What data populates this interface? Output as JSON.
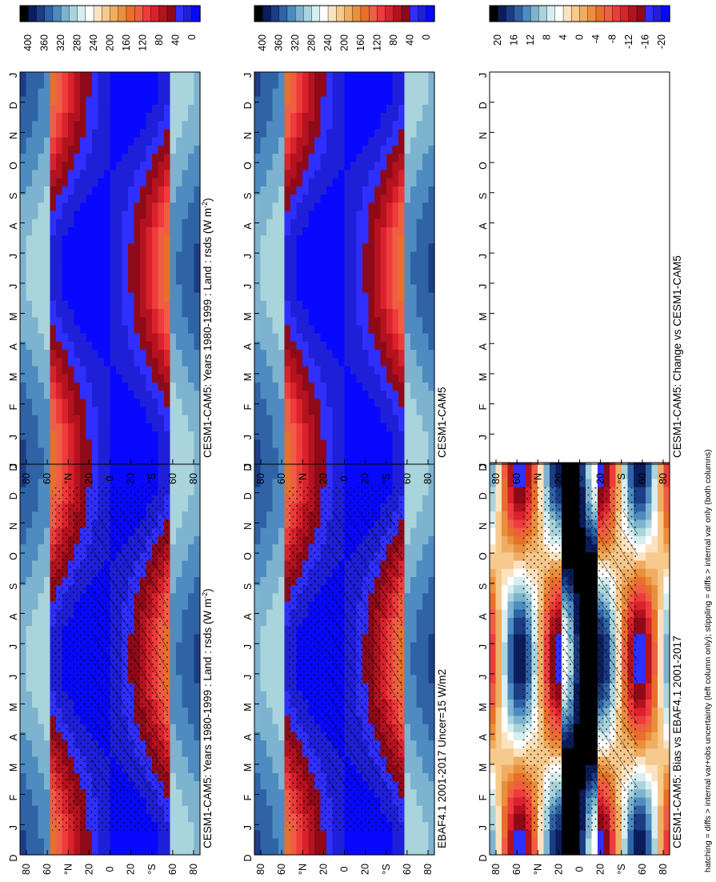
{
  "footer_note": "hatching = diffs > internal var+obs uncertainty (left column only); stippling = diffs > internal var only (both columns)",
  "month_labels": [
    "D",
    "J",
    "F",
    "M",
    "A",
    "M",
    "J",
    "J",
    "A",
    "S",
    "O",
    "N",
    "D",
    "J"
  ],
  "lat_labels": [
    "80",
    "60",
    "°N",
    "20",
    "0",
    "20",
    "°S",
    "60",
    "80"
  ],
  "colorbars": {
    "absolute": {
      "labels": [
        "0",
        "40",
        "80",
        "120",
        "160",
        "200",
        "240",
        "280",
        "320",
        "360",
        "400"
      ],
      "colors": [
        "#000000",
        "#0b1d5c",
        "#1c3d84",
        "#2f63a6",
        "#4d8bc0",
        "#7db3cf",
        "#a9d4dc",
        "#d7eef0",
        "#ffffff",
        "#fbe3c2",
        "#f6c98c",
        "#f0ad62",
        "#ea8f3c",
        "#e8702a",
        "#ef5e42",
        "#ee3b3b",
        "#d9222d",
        "#b4121f",
        "#8f0a19",
        "#2f2fff",
        "#1f1fd8",
        "#0808ff"
      ]
    },
    "difference": {
      "labels": [
        "-20",
        "-16",
        "-12",
        "-8",
        "-4",
        "0",
        "4",
        "8",
        "12",
        "16",
        "20"
      ],
      "colors": [
        "#000000",
        "#0b1d5c",
        "#1c3d84",
        "#2f63a6",
        "#4d8bc0",
        "#7db3cf",
        "#a9d4dc",
        "#d7eef0",
        "#ffffff",
        "#fbe3c2",
        "#f6c98c",
        "#f0ad62",
        "#ea8f3c",
        "#e8702a",
        "#ef5e42",
        "#ee3b3b",
        "#d9222d",
        "#b4121f",
        "#8f0a19",
        "#2f2fff",
        "#1f1fd8",
        "#0808ff"
      ]
    }
  },
  "chart_data": [
    {
      "type": "heatmap",
      "title": "CESM1-CAM5: Years 1980-1999 : Land : rsds (W m",
      "title_superscript": "-2",
      "title_suffix": ")",
      "x": "month (Dec to Jan)",
      "y": "latitude (90S to 90N)",
      "clim": [
        0,
        400
      ],
      "overlays": [
        "hatching",
        "stippling"
      ],
      "position": "row-1-left"
    },
    {
      "type": "heatmap",
      "title": "CESM1-CAM5: Years 1980-1999 : Land : rsds (W m",
      "title_superscript": "-2",
      "title_suffix": ")",
      "clim": [
        0,
        400
      ],
      "overlays": [],
      "position": "row-1-right"
    },
    {
      "type": "heatmap",
      "title": "EBAF4.1 2001-2017 Uncer=15 W/m2",
      "clim": [
        0,
        400
      ],
      "overlays": [
        "hatching",
        "stippling"
      ],
      "position": "row-2-left"
    },
    {
      "type": "heatmap",
      "title": "CESM1-CAM5",
      "clim": [
        0,
        400
      ],
      "overlays": [],
      "position": "row-2-right"
    },
    {
      "type": "heatmap",
      "title": "CESM1-CAM5: Bias vs EBAF4.1 2001-2017",
      "clim": [
        -20,
        20
      ],
      "overlays": [
        "hatching",
        "stippling"
      ],
      "position": "row-3-left"
    },
    {
      "type": "heatmap",
      "title": "CESM1-CAM5: Change vs CESM1-CAM5",
      "clim": [
        -20,
        20
      ],
      "overlays": [],
      "empty": true,
      "position": "row-3-right"
    }
  ]
}
